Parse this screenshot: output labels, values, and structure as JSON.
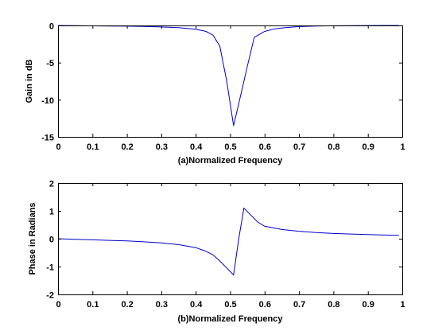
{
  "chart_data": [
    {
      "type": "line",
      "panel": "a",
      "xlabel": "(a)Normalized Frequency",
      "ylabel": "Gain in dB",
      "xlim": [
        0,
        1
      ],
      "ylim": [
        -15,
        0
      ],
      "xticks": [
        0,
        0.1,
        0.2,
        0.3,
        0.4,
        0.5,
        0.6,
        0.7,
        0.8,
        0.9,
        1
      ],
      "xtick_labels": [
        "0",
        "0.1",
        "0.2",
        "0.3",
        "0.4",
        "0.5",
        "0.6",
        "0.7",
        "0.8",
        "0.9",
        "1"
      ],
      "yticks": [
        -15,
        -10,
        -5,
        0
      ],
      "ytick_labels": [
        "-15",
        "-10",
        "-5",
        "0"
      ],
      "grid": false,
      "color": "#0000cc",
      "series": [
        {
          "x": [
            0,
            0.05,
            0.1,
            0.15,
            0.2,
            0.25,
            0.3,
            0.35,
            0.4,
            0.43,
            0.45,
            0.47,
            0.49,
            0.51,
            0.53,
            0.55,
            0.57,
            0.6,
            0.63,
            0.66,
            0.7,
            0.75,
            0.8,
            0.85,
            0.9,
            0.95,
            0.99
          ],
          "y": [
            0,
            -0.02,
            -0.05,
            -0.07,
            -0.1,
            -0.13,
            -0.2,
            -0.3,
            -0.5,
            -0.8,
            -1.3,
            -2.8,
            -7.5,
            -13.5,
            -9.5,
            -5.5,
            -1.6,
            -0.8,
            -0.45,
            -0.3,
            -0.15,
            -0.08,
            -0.04,
            -0.02,
            -0.01,
            0,
            0
          ]
        }
      ]
    },
    {
      "type": "line",
      "panel": "b",
      "xlabel": "(b)Normalized Frequency",
      "ylabel": "Phase in Radians",
      "xlim": [
        0,
        1
      ],
      "ylim": [
        -2,
        2
      ],
      "xticks": [
        0,
        0.1,
        0.2,
        0.3,
        0.4,
        0.5,
        0.6,
        0.7,
        0.8,
        0.9,
        1
      ],
      "xtick_labels": [
        "0",
        "0.1",
        "0.2",
        "0.3",
        "0.4",
        "0.5",
        "0.6",
        "0.7",
        "0.8",
        "0.9",
        "1"
      ],
      "yticks": [
        -2,
        -1,
        0,
        1,
        2
      ],
      "ytick_labels": [
        "-2",
        "-1",
        "0",
        "1",
        "2"
      ],
      "grid": false,
      "color": "#0000cc",
      "series": [
        {
          "x": [
            0,
            0.05,
            0.1,
            0.15,
            0.2,
            0.25,
            0.3,
            0.35,
            0.4,
            0.43,
            0.45,
            0.47,
            0.49,
            0.51,
            0.525,
            0.54,
            0.56,
            0.58,
            0.6,
            0.65,
            0.7,
            0.75,
            0.8,
            0.85,
            0.9,
            0.95,
            0.99
          ],
          "y": [
            0,
            -0.02,
            -0.04,
            -0.06,
            -0.08,
            -0.11,
            -0.15,
            -0.21,
            -0.32,
            -0.45,
            -0.58,
            -0.8,
            -1.05,
            -1.3,
            0,
            1.1,
            0.85,
            0.6,
            0.45,
            0.33,
            0.27,
            0.22,
            0.19,
            0.17,
            0.15,
            0.13,
            0.12
          ]
        }
      ]
    }
  ]
}
